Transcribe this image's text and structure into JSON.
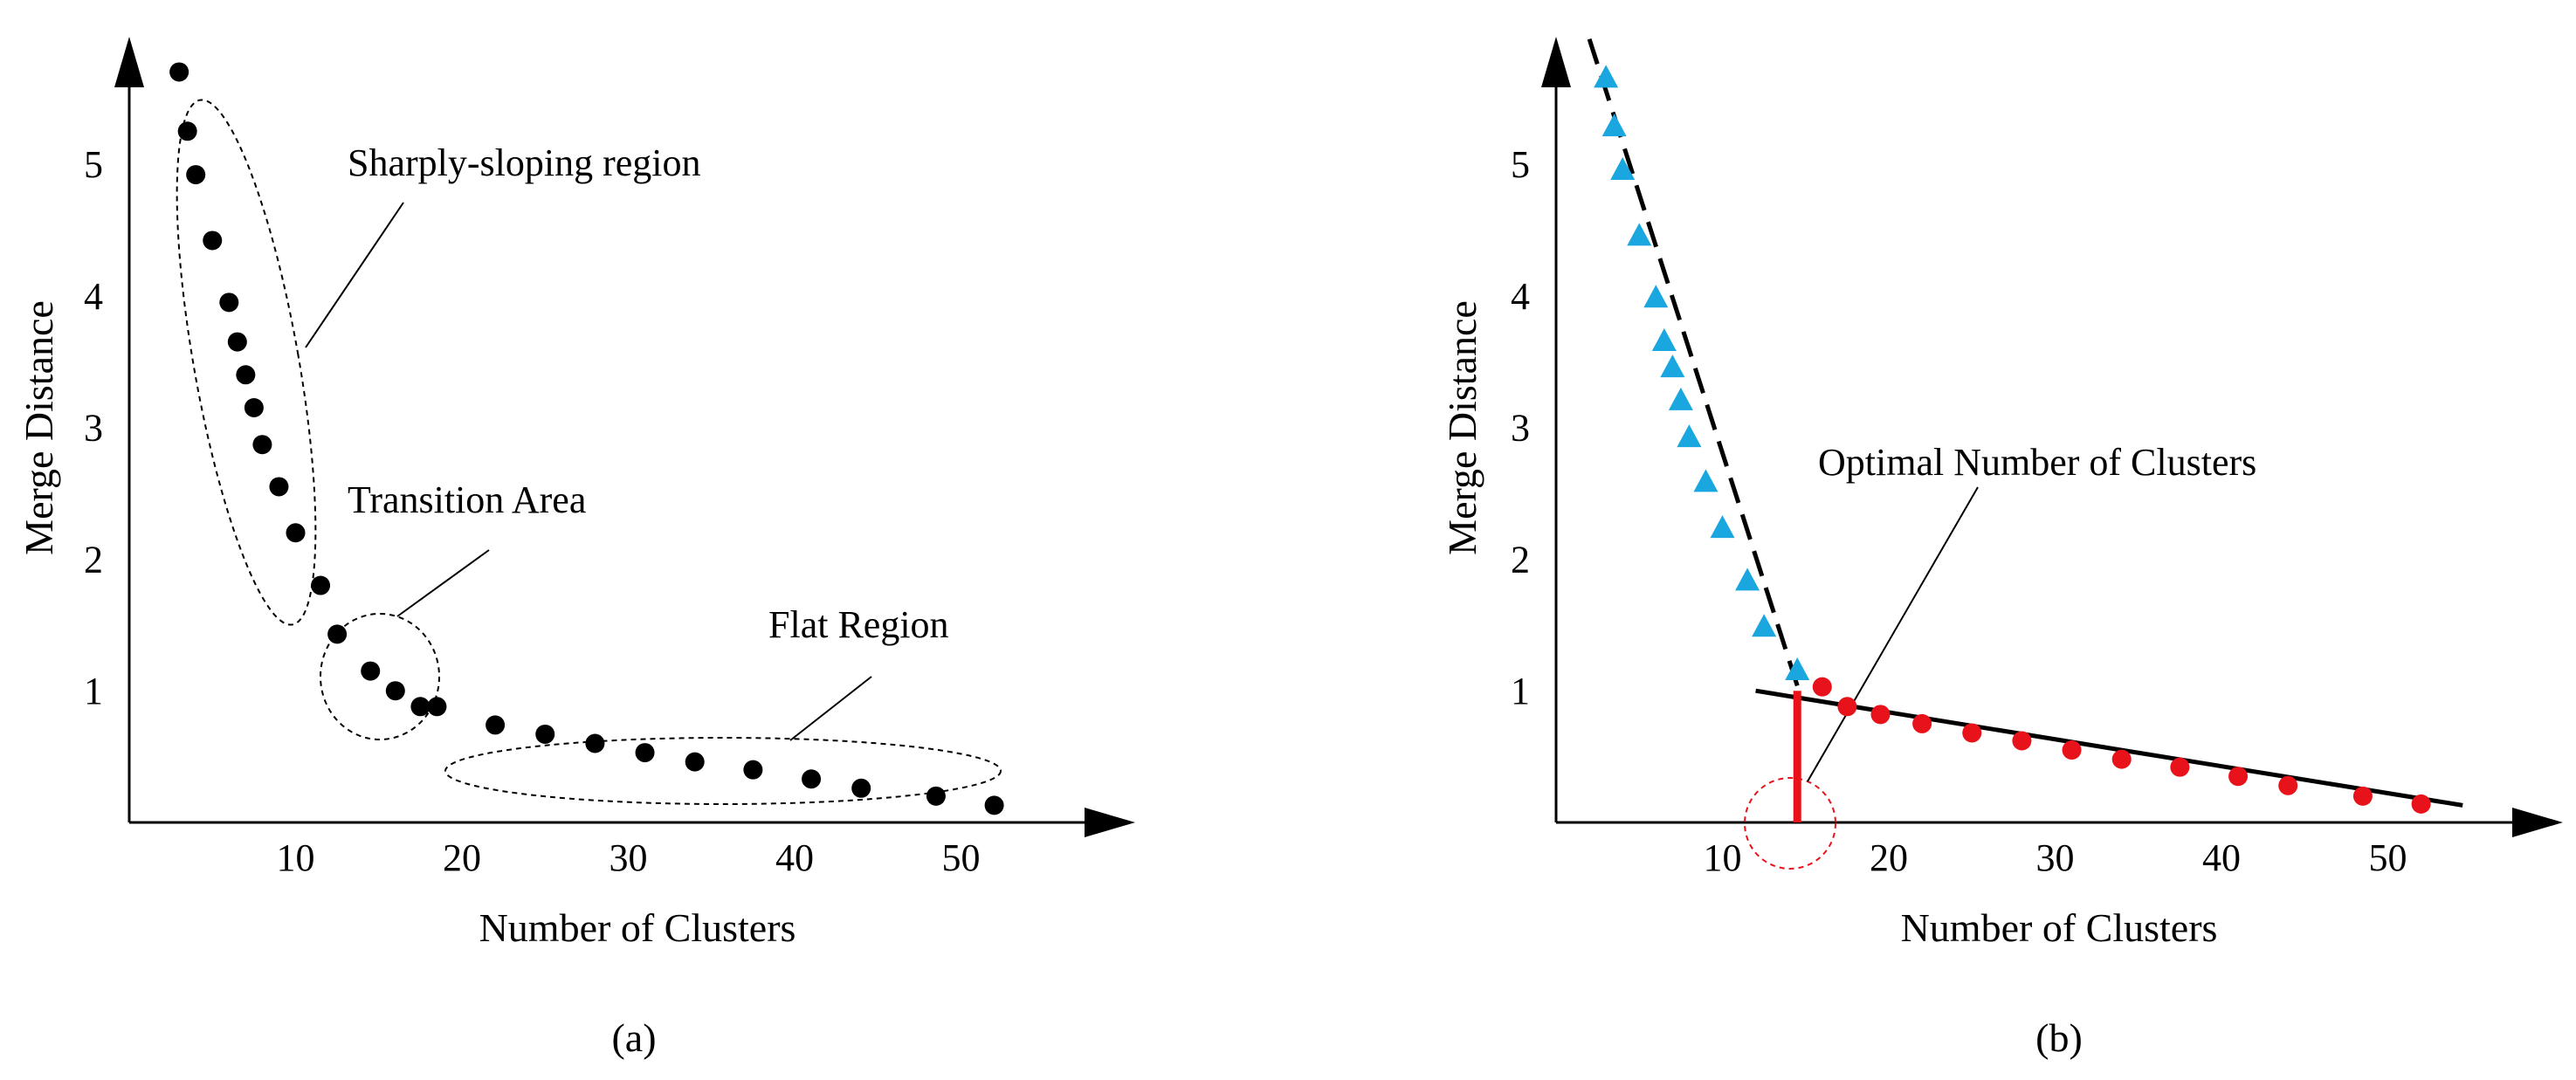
{
  "chart_data": [
    {
      "type": "scatter",
      "caption": "(a)",
      "xlabel": "Number of Clusters",
      "ylabel": "Merge Distance",
      "xticks": [
        10,
        20,
        30,
        40,
        50
      ],
      "yticks": [
        1,
        2,
        3,
        4,
        5
      ],
      "xlim": [
        0,
        58
      ],
      "ylim": [
        0,
        6
      ],
      "grid": false,
      "series": [
        {
          "color": "#000000",
          "marker": "circle",
          "points": [
            [
              3,
              5.7
            ],
            [
              3.5,
              5.25
            ],
            [
              4,
              4.92
            ],
            [
              5,
              4.42
            ],
            [
              6,
              3.95
            ],
            [
              6.5,
              3.65
            ],
            [
              7,
              3.4
            ],
            [
              7.5,
              3.15
            ],
            [
              8,
              2.87
            ],
            [
              9,
              2.55
            ],
            [
              10,
              2.2
            ],
            [
              11.5,
              1.8
            ],
            [
              12.5,
              1.43
            ],
            [
              14.5,
              1.15
            ],
            [
              16,
              1.0
            ],
            [
              17.5,
              0.88
            ],
            [
              18.5,
              0.88
            ],
            [
              22,
              0.74
            ],
            [
              25,
              0.67
            ],
            [
              28,
              0.6
            ],
            [
              31,
              0.53
            ],
            [
              34,
              0.46
            ],
            [
              37.5,
              0.4
            ],
            [
              41,
              0.33
            ],
            [
              44,
              0.26
            ],
            [
              48.5,
              0.2
            ],
            [
              52,
              0.13
            ]
          ]
        }
      ],
      "annotations": [
        {
          "text": "Sharply-sloping region"
        },
        {
          "text": "Transition Area"
        },
        {
          "text": "Flat Region"
        }
      ]
    },
    {
      "type": "scatter",
      "caption": "(b)",
      "xlabel": "Number of Clusters",
      "ylabel": "Merge Distance",
      "xticks": [
        10,
        20,
        30,
        40,
        50
      ],
      "yticks": [
        1,
        2,
        3,
        4,
        5
      ],
      "xlim": [
        0,
        58
      ],
      "ylim": [
        0,
        6
      ],
      "grid": false,
      "series": [
        {
          "color": "#1AA7E0",
          "marker": "triangle",
          "points": [
            [
              3,
              5.65
            ],
            [
              3.5,
              5.28
            ],
            [
              4,
              4.95
            ],
            [
              5,
              4.45
            ],
            [
              6,
              3.98
            ],
            [
              6.5,
              3.65
            ],
            [
              7,
              3.45
            ],
            [
              7.5,
              3.2
            ],
            [
              8,
              2.92
            ],
            [
              9,
              2.58
            ],
            [
              10,
              2.23
            ],
            [
              11.5,
              1.83
            ],
            [
              12.5,
              1.48
            ],
            [
              14.5,
              1.15
            ]
          ]
        },
        {
          "color": "#E8121A",
          "marker": "circle",
          "points": [
            [
              16,
              1.03
            ],
            [
              17.5,
              0.88
            ],
            [
              19.5,
              0.82
            ],
            [
              22,
              0.75
            ],
            [
              25,
              0.68
            ],
            [
              28,
              0.62
            ],
            [
              31,
              0.55
            ],
            [
              34,
              0.48
            ],
            [
              37.5,
              0.42
            ],
            [
              41,
              0.35
            ],
            [
              44,
              0.28
            ],
            [
              48.5,
              0.2
            ],
            [
              52,
              0.14
            ]
          ]
        }
      ],
      "fit_lines": [
        {
          "style": "dashed",
          "color": "#000000",
          "from": [
            2,
            5.95
          ],
          "to": [
            14.6,
            1.0
          ]
        },
        {
          "style": "solid",
          "color": "#000000",
          "from": [
            12,
            1.0
          ],
          "to": [
            54.5,
            0.13
          ]
        }
      ],
      "marker_line": {
        "color": "#E8121A",
        "x": 14.5,
        "y_from": 0,
        "y_to": 1.0
      },
      "annotations": [
        {
          "text": "Optimal Number of Clusters"
        }
      ]
    }
  ]
}
